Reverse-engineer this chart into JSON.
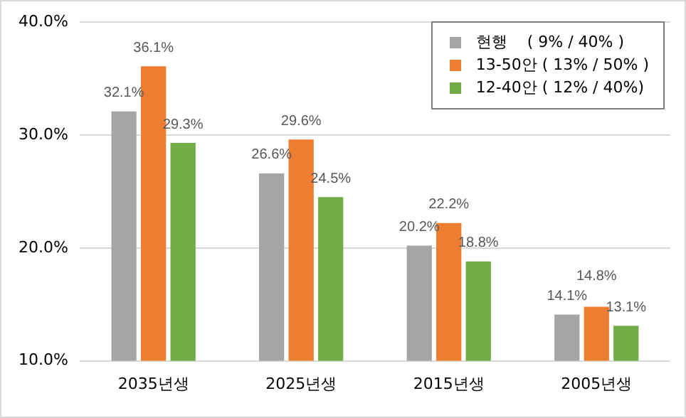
{
  "chart_data": {
    "type": "bar",
    "categories": [
      "2035년생",
      "2025년생",
      "2015년생",
      "2005년생"
    ],
    "series": [
      {
        "name": "현행    ( 9% / 40% )",
        "color": "#a5a5a5",
        "values": [
          32.1,
          26.6,
          20.2,
          14.1
        ],
        "value_labels": [
          "32.1%",
          "26.6%",
          "20.2%",
          "14.1%"
        ]
      },
      {
        "name": "13-50안 ( 13% / 50% )",
        "color": "#ed7d31",
        "values": [
          36.1,
          29.6,
          22.2,
          14.8
        ],
        "value_labels": [
          "36.1%",
          "29.6%",
          "22.2%",
          "14.8%"
        ]
      },
      {
        "name": "12-40안 ( 12% / 40%)",
        "color": "#70ad47",
        "values": [
          29.3,
          24.5,
          18.8,
          13.1
        ],
        "value_labels": [
          "29.3%",
          "24.5%",
          "18.8%",
          "13.1%"
        ]
      }
    ],
    "ylim": [
      10,
      40
    ],
    "yticks": [
      {
        "value": 10,
        "label": "10.0%"
      },
      {
        "value": 20,
        "label": "20.0%"
      },
      {
        "value": 30,
        "label": "30.0%"
      },
      {
        "value": 40,
        "label": "40.0%"
      }
    ],
    "grid": "y",
    "legend": "top right"
  }
}
